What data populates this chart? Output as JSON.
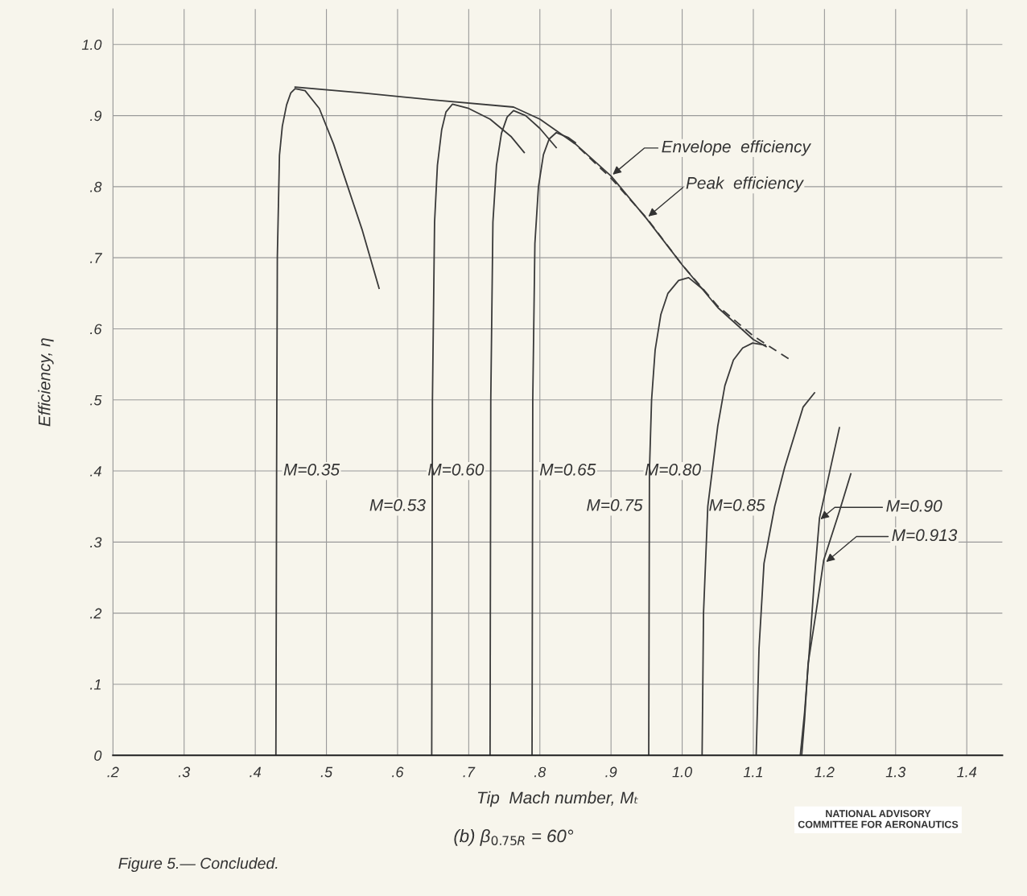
{
  "chart_data": {
    "type": "line",
    "title": "(b) β$_{0.75R}$ = 60°",
    "xlabel": "Tip  Mach number, Mₜ",
    "ylabel": "Efficiency, η",
    "xlim": [
      0.2,
      1.45
    ],
    "ylim": [
      0,
      1.05
    ],
    "xticks": [
      {
        "value": 0.2,
        "label": ".2"
      },
      {
        "value": 0.3,
        "label": ".3"
      },
      {
        "value": 0.4,
        "label": ".4"
      },
      {
        "value": 0.5,
        "label": ".5"
      },
      {
        "value": 0.6,
        "label": ".6"
      },
      {
        "value": 0.7,
        "label": ".7"
      },
      {
        "value": 0.8,
        "label": ".8"
      },
      {
        "value": 0.9,
        "label": ".9"
      },
      {
        "value": 1.0,
        "label": "1.0"
      },
      {
        "value": 1.1,
        "label": "1.1"
      },
      {
        "value": 1.2,
        "label": "1.2"
      },
      {
        "value": 1.3,
        "label": "1.3"
      },
      {
        "value": 1.4,
        "label": "1.4"
      }
    ],
    "yticks": [
      0,
      {
        "value": 0.1,
        "label": ".1"
      },
      {
        "value": 0.2,
        "label": ".2"
      },
      {
        "value": 0.3,
        "label": ".3"
      },
      {
        "value": 0.4,
        "label": ".4"
      },
      {
        "value": 0.5,
        "label": ".5"
      },
      {
        "value": 0.6,
        "label": ".6"
      },
      {
        "value": 0.7,
        "label": ".7"
      },
      {
        "value": 0.8,
        "label": ".8"
      },
      {
        "value": 0.9,
        "label": ".9"
      },
      {
        "value": 1.0,
        "label": "1.0"
      }
    ],
    "grid": true,
    "series": [
      {
        "color": "#3a3a3a",
        "x": [
          0.429,
          0.43,
          0.431,
          0.434,
          0.438,
          0.444,
          0.45,
          0.456,
          0.47,
          0.49,
          0.51,
          0.53,
          0.55,
          0.574
        ],
        "values": [
          0,
          0.4,
          0.7,
          0.844,
          0.885,
          0.915,
          0.932,
          0.938,
          0.935,
          0.91,
          0.86,
          0.8,
          0.74,
          0.657
        ]
      },
      {
        "color": "#3a3a3a",
        "x": [
          0.648,
          0.649,
          0.652,
          0.656,
          0.662,
          0.668,
          0.677,
          0.7,
          0.73,
          0.76,
          0.778
        ],
        "values": [
          0,
          0.5,
          0.75,
          0.83,
          0.88,
          0.905,
          0.916,
          0.91,
          0.895,
          0.87,
          0.848
        ]
      },
      {
        "color": "#3a3a3a",
        "x": [
          0.73,
          0.731,
          0.734,
          0.739,
          0.746,
          0.754,
          0.763,
          0.78,
          0.8,
          0.823
        ],
        "values": [
          0,
          0.5,
          0.75,
          0.83,
          0.875,
          0.898,
          0.907,
          0.9,
          0.882,
          0.855
        ]
      },
      {
        "color": "#3a3a3a",
        "x": [
          0.789,
          0.79,
          0.793,
          0.798,
          0.805,
          0.813,
          0.823,
          0.84,
          0.85
        ],
        "values": [
          0,
          0.5,
          0.72,
          0.8,
          0.845,
          0.867,
          0.876,
          0.869,
          0.862
        ]
      },
      {
        "color": "#3a3a3a",
        "x": [
          0.953,
          0.954,
          0.957,
          0.962,
          0.97,
          0.98,
          0.995,
          1.009,
          1.03
        ],
        "values": [
          0,
          0.4,
          0.5,
          0.57,
          0.62,
          0.65,
          0.668,
          0.672,
          0.655
        ]
      },
      {
        "color": "#3a3a3a",
        "x": [
          1.028,
          1.03,
          1.036,
          1.05,
          1.06,
          1.072,
          1.085,
          1.099,
          1.117
        ],
        "values": [
          0,
          0.2,
          0.35,
          0.463,
          0.52,
          0.556,
          0.573,
          0.58,
          0.577
        ]
      },
      {
        "color": "#3a3a3a",
        "x": [
          1.104,
          1.108,
          1.115,
          1.13,
          1.144,
          1.17,
          1.186
        ],
        "values": [
          0,
          0.15,
          0.27,
          0.35,
          0.405,
          0.49,
          0.51
        ]
      },
      {
        "color": "#3a3a3a",
        "x": [
          1.166,
          1.172,
          1.179,
          1.186,
          1.193,
          1.221
        ],
        "values": [
          0,
          0.06,
          0.151,
          0.25,
          0.334,
          0.461
        ]
      },
      {
        "color": "#3a3a3a",
        "x": [
          1.168,
          1.172,
          1.177,
          1.188,
          1.199,
          1.22,
          1.237
        ],
        "values": [
          0,
          0.05,
          0.129,
          0.2,
          0.275,
          0.34,
          0.396
        ]
      },
      {
        "color": "#3a3a3a",
        "x": [
          0.456,
          0.55,
          0.65,
          0.763,
          0.8,
          0.85,
          0.9,
          0.95,
          1.0,
          1.05,
          1.1,
          1.118
        ],
        "values": [
          0.94,
          0.932,
          0.922,
          0.912,
          0.895,
          0.86,
          0.815,
          0.755,
          0.69,
          0.63,
          0.585,
          0.575
        ]
      },
      {
        "color": "#3a3a3a",
        "line_style": "dashed",
        "x": [
          0.84,
          0.9,
          0.95,
          1.0,
          1.05,
          1.1,
          1.154
        ],
        "values": [
          0.869,
          0.812,
          0.756,
          0.69,
          0.632,
          0.59,
          0.555
        ]
      }
    ],
    "annotations": [
      {
        "text": "M=0.35",
        "x": 0.43,
        "y": 0.4
      },
      {
        "text": "M=0.53",
        "x": 0.649,
        "y": 0.35
      },
      {
        "text": "M=0.60",
        "x": 0.731,
        "y": 0.4
      },
      {
        "text": "M=0.65",
        "x": 0.79,
        "y": 0.4
      },
      {
        "text": "M=0.75",
        "x": 0.954,
        "y": 0.35
      },
      {
        "text": "M=0.80",
        "x": 1.036,
        "y": 0.4
      },
      {
        "text": "M=0.85",
        "x": 1.126,
        "y": 0.35
      },
      {
        "text": "M=0.90",
        "x": 1.192,
        "y": 0.33
      },
      {
        "text": "M=0.913",
        "x": 1.2,
        "y": 0.27
      },
      {
        "text": "Envelope  efficiency",
        "x": 0.9,
        "y": 0.815
      },
      {
        "text": "Peak  efficiency",
        "x": 0.95,
        "y": 0.756
      },
      "Figure 5.— Concluded.",
      "NATIONAL ADVISORY\nCOMMITTEE FOR AERONAUTICS"
    ]
  }
}
